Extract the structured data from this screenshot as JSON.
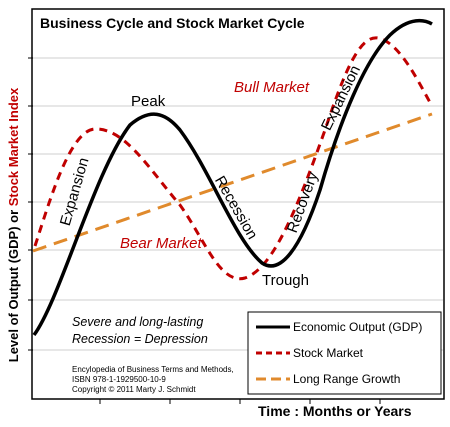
{
  "title": "Business Cycle and Stock Market Cycle",
  "y_axis_label": {
    "part1": "Level of Output  (GDP) or ",
    "part2": "Stock Market Index"
  },
  "x_axis_label": "Time : Months or Years",
  "phase_labels": {
    "peak": "Peak",
    "trough": "Trough",
    "expansion_left": "Expansion",
    "recession": "Recession",
    "recovery": "Recovery",
    "expansion_right": "Expansion",
    "bull_market": "Bull Market",
    "bear_market": "Bear Market"
  },
  "note": {
    "line1": "Severe and long-lasting",
    "line2": "Recession = Depression"
  },
  "citation": {
    "line1": "Encylopedia of Business Terms and Methods,",
    "line2": "ISBN 978-1-1929500-10-9",
    "line3": "Copyright © 2011 Marty J. Schmidt"
  },
  "legend": [
    {
      "label": "Economic Output (GDP)",
      "color": "#000000",
      "style": "solid"
    },
    {
      "label": "Stock Market",
      "color": "#c00000",
      "style": "dashed"
    },
    {
      "label": "Long Range Growth",
      "color": "#e08a2c",
      "style": "dashed"
    }
  ],
  "colors": {
    "gdp": "#000000",
    "stock": "#c00000",
    "growth": "#e08a2c",
    "grid": "#c8c8c8",
    "frame": "#000000",
    "bull_bear_text": "#c00000"
  }
}
